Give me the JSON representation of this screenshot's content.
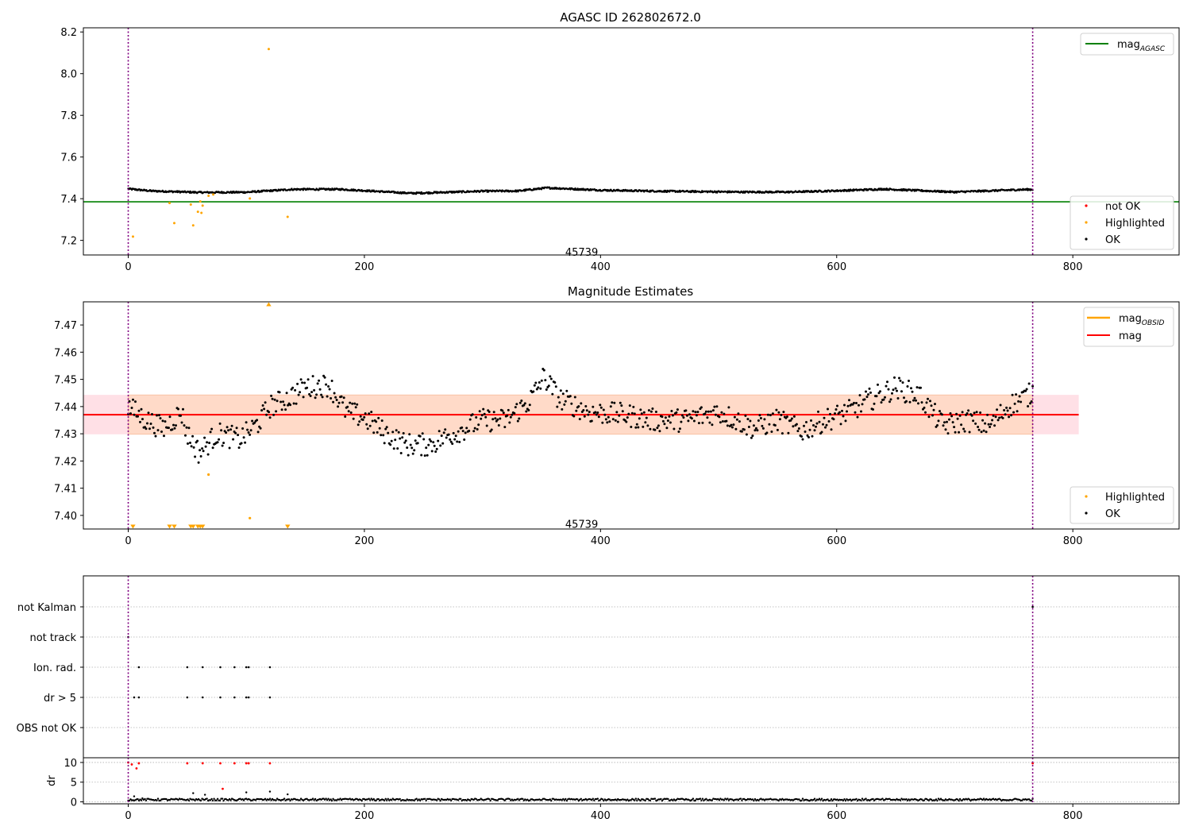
{
  "chart_data": [
    {
      "type": "scatter",
      "title": "AGASC ID 262802672.0",
      "xlim": [
        -38,
        890
      ],
      "ylim": [
        7.13,
        8.22
      ],
      "x_ticks": [
        "0",
        "200",
        "400",
        "600",
        "800"
      ],
      "y_ticks": [
        "7.2",
        "7.4",
        "7.6",
        "7.8",
        "8.0",
        "8.2"
      ],
      "grid": false,
      "legend_upper": {
        "position": "top-right",
        "entries": [
          "mag_AGASC"
        ]
      },
      "legend_lower": {
        "position": "bottom-right",
        "entries": [
          "not OK",
          "Highlighted",
          "OK"
        ]
      },
      "annotation": {
        "text": "45739",
        "x": 384,
        "y": 7.16
      },
      "reference_lines": {
        "mag_agasc": 7.385,
        "obs_start": 0,
        "obs_end": 766
      },
      "colors": {
        "mag_agasc": "#008000",
        "ok": "#000000",
        "highlighted": "#ffa500",
        "not_ok": "#ff0000",
        "obs_line": "#800080"
      },
      "series": [
        {
          "name": "OK",
          "baseline": 7.437,
          "points": [
            [
              0,
              7.447
            ],
            [
              20,
              7.437
            ],
            [
              60,
              7.43
            ],
            [
              100,
              7.431
            ],
            [
              140,
              7.445
            ],
            [
              180,
              7.445
            ],
            [
              240,
              7.426
            ],
            [
              300,
              7.436
            ],
            [
              330,
              7.437
            ],
            [
              355,
              7.452
            ],
            [
              400,
              7.441
            ],
            [
              450,
              7.436
            ],
            [
              520,
              7.432
            ],
            [
              560,
              7.432
            ],
            [
              600,
              7.438
            ],
            [
              640,
              7.446
            ],
            [
              700,
              7.432
            ],
            [
              760,
              7.444
            ]
          ]
        },
        {
          "name": "Highlighted",
          "points": [
            [
              4,
              7.218
            ],
            [
              35,
              7.379
            ],
            [
              39,
              7.283
            ],
            [
              53,
              7.372
            ],
            [
              55,
              7.272
            ],
            [
              59,
              7.337
            ],
            [
              61,
              7.387
            ],
            [
              62,
              7.332
            ],
            [
              63,
              7.367
            ],
            [
              68,
              7.414
            ],
            [
              72,
              7.42
            ],
            [
              103,
              7.401
            ],
            [
              119,
              8.118
            ],
            [
              135,
              7.313
            ]
          ]
        },
        {
          "name": "not OK",
          "points": []
        }
      ]
    },
    {
      "type": "scatter",
      "title": "Magnitude Estimates",
      "xlim": [
        -38,
        890
      ],
      "ylim": [
        7.395,
        7.4785
      ],
      "x_ticks": [
        "0",
        "200",
        "400",
        "600",
        "800"
      ],
      "y_ticks": [
        "7.40",
        "7.41",
        "7.42",
        "7.43",
        "7.44",
        "7.45",
        "7.46",
        "7.47"
      ],
      "grid": false,
      "legend_upper": {
        "position": "top-right",
        "entries": [
          "mag_OBSID",
          "mag"
        ]
      },
      "legend_lower": {
        "position": "bottom-right",
        "entries": [
          "Highlighted",
          "OK"
        ]
      },
      "annotation": {
        "text": "45739",
        "x": 384,
        "y": 7.398
      },
      "mag": 7.437,
      "mag_band": [
        7.4298,
        7.4443
      ],
      "band_x_extent": [
        -38,
        805
      ],
      "obs_lines": [
        0,
        766
      ],
      "colors": {
        "mag": "#ff0000",
        "mag_obsid": "#ffa500",
        "band_inner": "#ffdac8",
        "band_outer": "#ffe0e6",
        "ok": "#000000",
        "highlighted": "#ffa500"
      },
      "series": [
        {
          "name": "OK",
          "control_points": [
            [
              0,
              7.44
            ],
            [
              15,
              7.435
            ],
            [
              30,
              7.432
            ],
            [
              45,
              7.438
            ],
            [
              50,
              7.43
            ],
            [
              60,
              7.423
            ],
            [
              75,
              7.43
            ],
            [
              95,
              7.428
            ],
            [
              110,
              7.434
            ],
            [
              120,
              7.44
            ],
            [
              135,
              7.443
            ],
            [
              150,
              7.447
            ],
            [
              170,
              7.448
            ],
            [
              185,
              7.438
            ],
            [
              200,
              7.436
            ],
            [
              215,
              7.431
            ],
            [
              235,
              7.426
            ],
            [
              255,
              7.426
            ],
            [
              275,
              7.43
            ],
            [
              300,
              7.435
            ],
            [
              320,
              7.435
            ],
            [
              340,
              7.442
            ],
            [
              352,
              7.451
            ],
            [
              365,
              7.443
            ],
            [
              390,
              7.438
            ],
            [
              420,
              7.437
            ],
            [
              445,
              7.435
            ],
            [
              470,
              7.435
            ],
            [
              500,
              7.438
            ],
            [
              530,
              7.432
            ],
            [
              550,
              7.435
            ],
            [
              570,
              7.431
            ],
            [
              590,
              7.435
            ],
            [
              610,
              7.438
            ],
            [
              630,
              7.443
            ],
            [
              650,
              7.447
            ],
            [
              670,
              7.444
            ],
            [
              690,
              7.433
            ],
            [
              710,
              7.435
            ],
            [
              730,
              7.433
            ],
            [
              745,
              7.44
            ],
            [
              766,
              7.445
            ]
          ]
        },
        {
          "name": "Highlighted",
          "up_markers": [
            [
              119,
              7.4785
            ]
          ],
          "down_markers": [
            [
              4,
              7.3955
            ],
            [
              35,
              7.3955
            ],
            [
              39,
              7.3955
            ],
            [
              53,
              7.3955
            ],
            [
              55,
              7.3955
            ],
            [
              59,
              7.3955
            ],
            [
              61,
              7.3955
            ],
            [
              63,
              7.3955
            ],
            [
              135,
              7.3955
            ]
          ],
          "points": [
            [
              68,
              7.415
            ],
            [
              103,
              7.399
            ]
          ]
        }
      ]
    },
    {
      "type": "scatter",
      "title": "",
      "xlim": [
        -38,
        890
      ],
      "categories": [
        "not Kalman",
        "not track",
        "Ion. rad.",
        "dr > 5",
        "OBS not OK"
      ],
      "grid": true,
      "obs_lines": [
        0,
        766
      ],
      "flag_points": {
        "not Kalman": [
          766
        ],
        "not track": [
          0
        ],
        "Ion. rad.": [
          9,
          50,
          63,
          78,
          90,
          100,
          102,
          120
        ],
        "dr > 5": [
          5,
          9,
          50,
          63,
          78,
          90,
          100,
          102,
          120
        ],
        "OBS not OK": []
      }
    },
    {
      "type": "scatter",
      "title": "",
      "xlim": [
        -38,
        890
      ],
      "ylim": [
        -0.5,
        11.2
      ],
      "ylabel": "dr",
      "x_ticks": [
        "0",
        "200",
        "400",
        "600",
        "800"
      ],
      "y_ticks": [
        "0",
        "5",
        "10"
      ],
      "grid": true,
      "baseline_points_range": [
        0,
        766
      ],
      "baseline_value": 0.55,
      "outliers_black": [
        [
          5,
          1.4
        ],
        [
          12,
          0.9
        ],
        [
          55,
          2.2
        ],
        [
          65,
          1.8
        ],
        [
          100,
          2.4
        ],
        [
          120,
          2.6
        ],
        [
          135,
          1.9
        ]
      ],
      "outliers_red": [
        [
          0,
          10.0
        ],
        [
          3,
          9.5
        ],
        [
          7,
          8.5
        ],
        [
          9,
          9.8
        ],
        [
          50,
          9.8
        ],
        [
          63,
          9.8
        ],
        [
          78,
          9.8
        ],
        [
          80,
          3.3
        ],
        [
          90,
          9.8
        ],
        [
          100,
          9.8
        ],
        [
          102,
          9.8
        ],
        [
          120,
          9.8
        ],
        [
          766,
          9.8
        ]
      ]
    }
  ]
}
